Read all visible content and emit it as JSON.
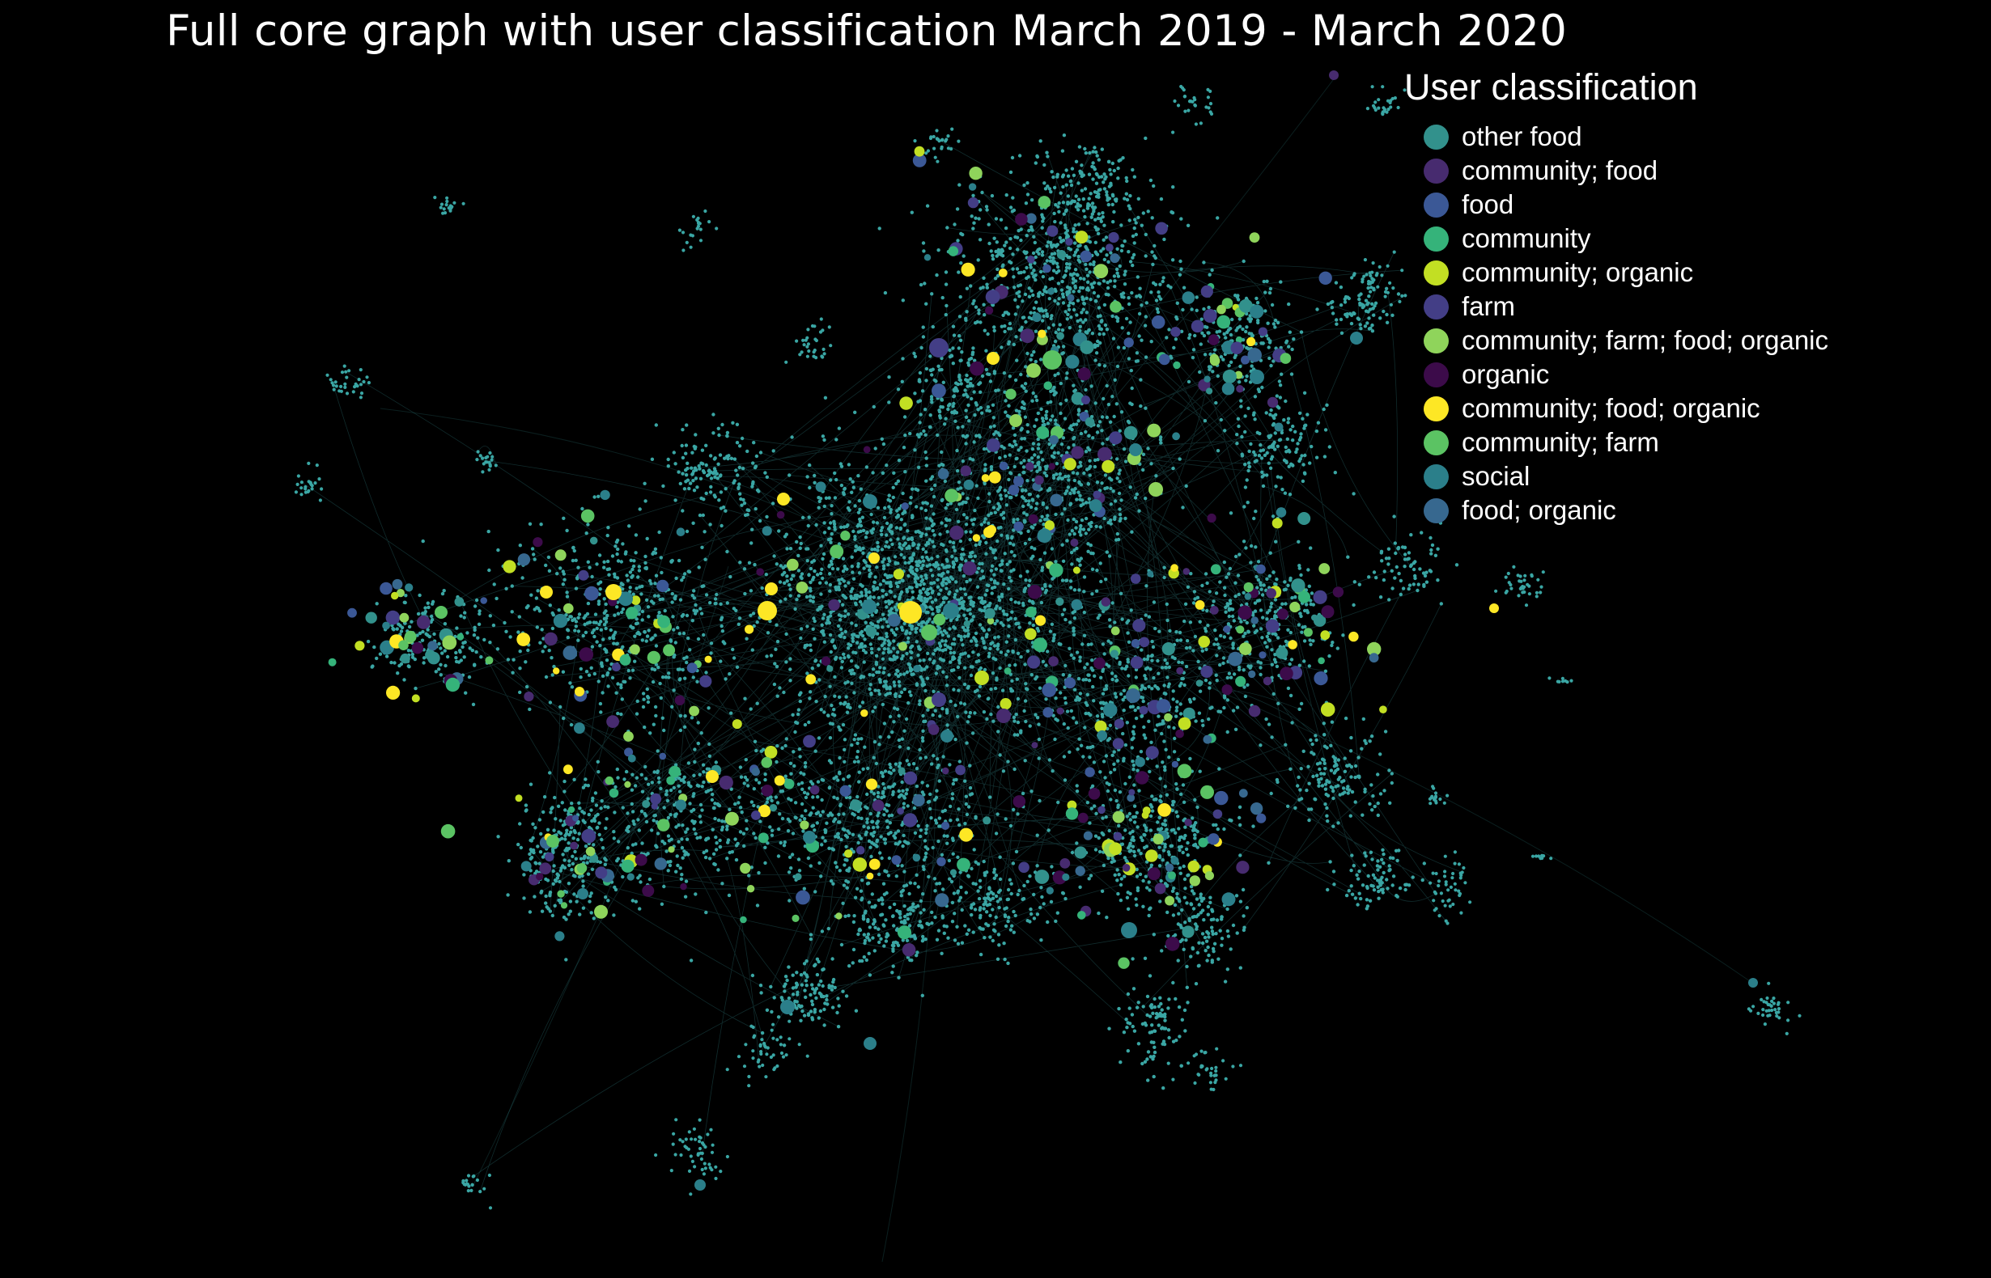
{
  "title": "Full core graph with user classification March 2019 - March 2020",
  "legend": {
    "title": "User classification",
    "items": [
      {
        "label": "other food",
        "color": "#32918c"
      },
      {
        "label": "community; food",
        "color": "#472b6f"
      },
      {
        "label": "food",
        "color": "#3b5896"
      },
      {
        "label": "community",
        "color": "#35b37a"
      },
      {
        "label": "community; organic",
        "color": "#c2df23"
      },
      {
        "label": "farm",
        "color": "#433e86"
      },
      {
        "label": "community; farm; food; organic",
        "color": "#8fd45b"
      },
      {
        "label": "organic",
        "color": "#3c0b4a"
      },
      {
        "label": "community; food; organic",
        "color": "#fde725"
      },
      {
        "label": "community; farm",
        "color": "#5bc363"
      },
      {
        "label": "social",
        "color": "#2b7f8a"
      },
      {
        "label": "food; organic",
        "color": "#37688f"
      }
    ]
  },
  "colors": {
    "background": "#000000",
    "edge": "#2d7a7d",
    "node_default": "#3aa6a4"
  }
}
